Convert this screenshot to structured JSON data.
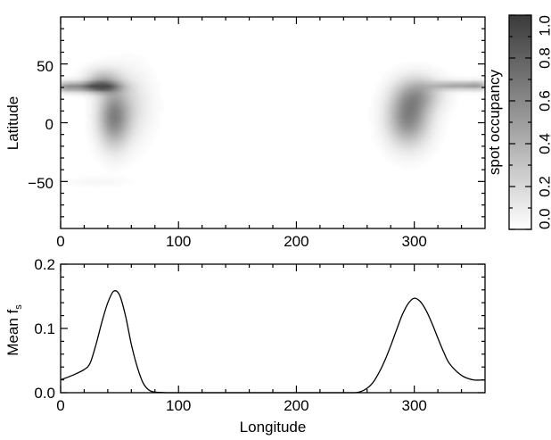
{
  "chart_data": [
    {
      "type": "heatmap",
      "xlabel": "",
      "ylabel": "Latitude",
      "xlim": [
        0,
        360
      ],
      "ylim": [
        -90,
        90
      ],
      "xticks": [
        "0",
        "100",
        "200",
        "300"
      ],
      "yticks": [
        "50",
        "0",
        "−50"
      ],
      "colorbar": {
        "label": "spot occupancy",
        "range": [
          0.0,
          1.0
        ],
        "ticks": [
          "0.0",
          "0.2",
          "0.4",
          "0.6",
          "0.8",
          "1.0"
        ],
        "colormap": "white-to-black"
      },
      "features": [
        {
          "lon": 30,
          "lat": 31,
          "lon_sigma": 13,
          "lat_sigma": 3,
          "peak": 0.75
        },
        {
          "lon": 35,
          "lat": 36,
          "lon_sigma": 10,
          "lat_sigma": 7,
          "peak": 0.35
        },
        {
          "lon": 45,
          "lat": 5,
          "lon_sigma": 9,
          "lat_sigma": 17,
          "peak": 0.6
        },
        {
          "lon": 5,
          "lat": 31,
          "lon_sigma": 8,
          "lat_sigma": 3,
          "peak": 0.45
        },
        {
          "lon": 60,
          "lat": 15,
          "lon_sigma": 12,
          "lat_sigma": 20,
          "peak": 0.15
        },
        {
          "lon": 295,
          "lat": 5,
          "lon_sigma": 12,
          "lat_sigma": 16,
          "peak": 0.62
        },
        {
          "lon": 305,
          "lat": 25,
          "lon_sigma": 13,
          "lat_sigma": 10,
          "peak": 0.35
        },
        {
          "lon": 335,
          "lat": 32,
          "lon_sigma": 14,
          "lat_sigma": 2.5,
          "peak": 0.45
        },
        {
          "lon": 355,
          "lat": 32,
          "lon_sigma": 8,
          "lat_sigma": 2.5,
          "peak": 0.35
        },
        {
          "lon": 30,
          "lat": -50,
          "lon_sigma": 20,
          "lat_sigma": 3,
          "peak": 0.04
        }
      ]
    },
    {
      "type": "line",
      "xlabel": "Longitude",
      "ylabel": "Mean f",
      "ylabel_sub": "s",
      "xlim": [
        0,
        360
      ],
      "ylim": [
        0,
        0.2
      ],
      "xticks": [
        "0",
        "100",
        "200",
        "300"
      ],
      "yticks": [
        "0.0",
        "0.1",
        "0.2"
      ],
      "series": [
        {
          "x": [
            0,
            10,
            20,
            25,
            30,
            35,
            40,
            45,
            50,
            55,
            60,
            65,
            70,
            75,
            80,
            90,
            100,
            150,
            200,
            240,
            250,
            255,
            260,
            265,
            270,
            275,
            280,
            285,
            290,
            295,
            300,
            305,
            310,
            315,
            320,
            325,
            330,
            340,
            350,
            360
          ],
          "y": [
            0.02,
            0.027,
            0.036,
            0.046,
            0.075,
            0.11,
            0.14,
            0.158,
            0.152,
            0.12,
            0.075,
            0.04,
            0.015,
            0.004,
            0.001,
            0.0,
            0.0,
            0.0,
            0.0,
            0.0,
            0.0,
            0.002,
            0.007,
            0.016,
            0.031,
            0.05,
            0.073,
            0.098,
            0.122,
            0.139,
            0.147,
            0.142,
            0.128,
            0.108,
            0.085,
            0.063,
            0.045,
            0.027,
            0.02,
            0.02
          ]
        }
      ]
    }
  ]
}
